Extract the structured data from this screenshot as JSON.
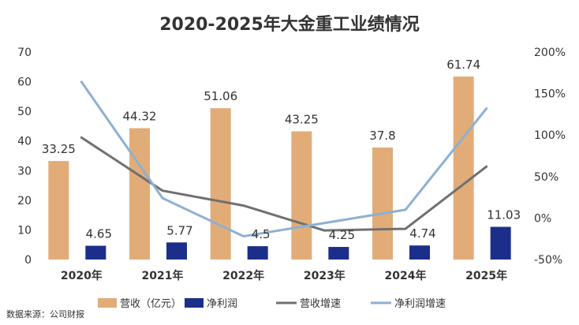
{
  "chart_data": {
    "type": "bar",
    "title": "2020-2025年大金重工业绩情况",
    "categories": [
      "2020年",
      "2021年",
      "2022年",
      "2023年",
      "2024年",
      "2025年"
    ],
    "ylim": [
      0,
      70
    ],
    "yticks": [
      0,
      10,
      20,
      30,
      40,
      50,
      60,
      70
    ],
    "y2lim": [
      -50,
      200
    ],
    "y2ticks": [
      "-50%",
      "0%",
      "50%",
      "100%",
      "150%",
      "200%"
    ],
    "y2tick_values": [
      -50,
      0,
      50,
      100,
      150,
      200
    ],
    "series": [
      {
        "name": "营收（亿元）",
        "kind": "bar",
        "axis": "left",
        "color": "#E2AC78",
        "values": [
          33.25,
          44.32,
          51.06,
          43.25,
          37.8,
          61.74
        ],
        "labels": [
          "33.25",
          "44.32",
          "51.06",
          "43.25",
          "37.8",
          "61.74"
        ]
      },
      {
        "name": "净利润",
        "kind": "bar",
        "axis": "left",
        "color": "#1B2F8A",
        "values": [
          4.65,
          5.77,
          4.5,
          4.25,
          4.74,
          11.03
        ],
        "labels": [
          "4.65",
          "5.77",
          "4.5",
          "4.25",
          "4.74",
          "11.03"
        ]
      },
      {
        "name": "营收增速",
        "kind": "line",
        "axis": "right",
        "color": "#707070",
        "values": [
          97,
          33,
          15,
          -15,
          -13,
          62
        ]
      },
      {
        "name": "净利润增速",
        "kind": "line",
        "axis": "right",
        "color": "#8EB0D0",
        "values": [
          164,
          24,
          -22,
          -6,
          10,
          132
        ]
      }
    ],
    "legend": {
      "position": "bottom",
      "entries": [
        "营收（亿元）",
        "净利润",
        "营收增速",
        "净利润增速"
      ]
    },
    "grid": false
  },
  "footer": {
    "source": "数据来源：公司财报"
  }
}
